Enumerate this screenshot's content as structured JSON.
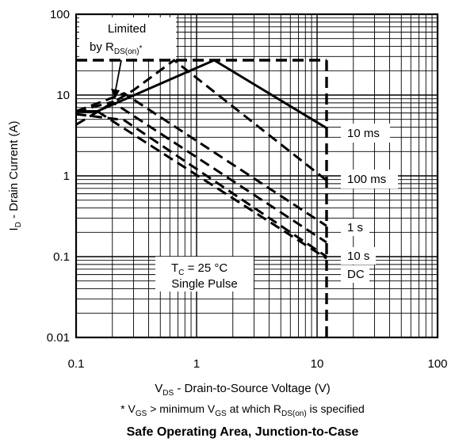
{
  "chart_data": {
    "type": "line",
    "title": "Safe Operating Area, Junction-to-Case",
    "xlabel": {
      "main": "V",
      "sub": "DS",
      "rest": " - Drain-to-Source Voltage (V)"
    },
    "ylabel": {
      "main": "I",
      "sub": "D",
      "rest": " - Drain Current (A)"
    },
    "footnote": {
      "p1": "* V",
      "s1": "GS",
      "p2": " > minimum V",
      "s2": "GS",
      "p3": " at which R",
      "s3": "DS(on)",
      "p4": " is specified"
    },
    "x_scale": "log",
    "y_scale": "log",
    "xlim": [
      0.1,
      100
    ],
    "ylim": [
      0.01,
      100
    ],
    "x_ticks": [
      "0.1",
      "1",
      "10",
      "100"
    ],
    "y_ticks": [
      "0.01",
      "0.1",
      "1",
      "10",
      "100"
    ],
    "grid": true,
    "annotations": {
      "limited_line1": "Limited",
      "limited_line2_main": "by R",
      "limited_line2_sub": "DS(on)",
      "limited_line2_tail": "*",
      "tc_main": "T",
      "tc_sub": "C",
      "tc_rest": " = 25 °C",
      "pulse": "Single Pulse"
    },
    "series": [
      {
        "name": "10 ms",
        "style": "solid",
        "x": [
          0.1,
          0.15,
          1.4,
          12
        ],
        "y": [
          6.3,
          6.3,
          27,
          3.9
        ]
      },
      {
        "name": "100 ms",
        "style": "dashed",
        "x": [
          0.1,
          0.3,
          0.65,
          12
        ],
        "y": [
          4.3,
          11.5,
          27,
          0.88
        ]
      },
      {
        "name": "1 s",
        "style": "dashed",
        "x": [
          0.1,
          0.25,
          12
        ],
        "y": [
          6.3,
          10.5,
          0.24
        ]
      },
      {
        "name": "10 s",
        "style": "dashed",
        "x": [
          0.1,
          0.2,
          12
        ],
        "y": [
          6.3,
          8.2,
          0.15
        ]
      },
      {
        "name": "DC",
        "style": "dashed",
        "x": [
          0.15,
          12
        ],
        "y": [
          6.3,
          0.095
        ]
      },
      {
        "name": "",
        "style": "dashed",
        "x": [
          0.1,
          0.25,
          12
        ],
        "y": [
          5.8,
          4.9,
          0.1
        ]
      },
      {
        "name": "",
        "style": "dashed-heavy",
        "x": [
          0.1,
          12
        ],
        "y": [
          27,
          27
        ]
      },
      {
        "name": "",
        "style": "dashed-heavy",
        "x": [
          12,
          12
        ],
        "y": [
          27,
          0.01
        ]
      }
    ]
  }
}
